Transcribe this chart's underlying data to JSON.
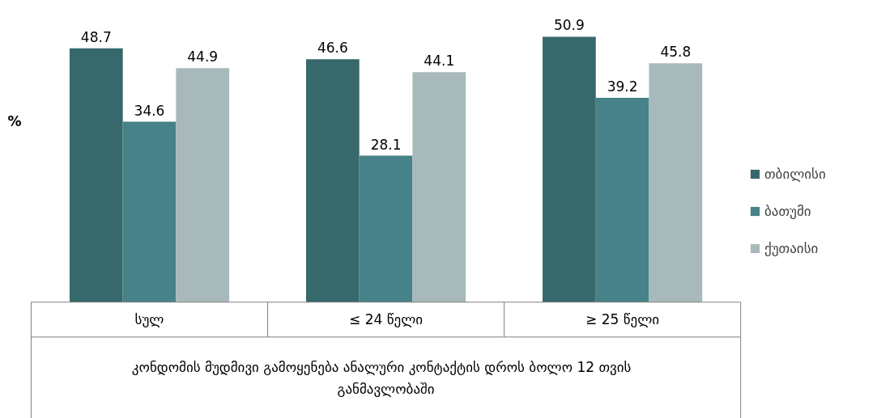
{
  "chart_data": {
    "type": "bar",
    "ylabel": "%",
    "xlabel": "კონდომის მუდმივი გამოყენება ანალური  კონტაქტის დროს ბოლო 12 თვის განმავლობაში",
    "categories": [
      "სულ",
      "≤ 24 წელი",
      "≥ 25 წელი"
    ],
    "series": [
      {
        "name": "თბილისი",
        "color": "#37686b",
        "values": [
          48.7,
          46.6,
          50.9
        ]
      },
      {
        "name": "ბათუმი",
        "color": "#468287",
        "values": [
          34.6,
          28.1,
          39.2
        ]
      },
      {
        "name": "ქუთაისი",
        "color": "#a8b9bb",
        "values": [
          44.9,
          44.1,
          45.8
        ]
      }
    ],
    "data_labels": true,
    "legend": "right",
    "grid": false
  }
}
